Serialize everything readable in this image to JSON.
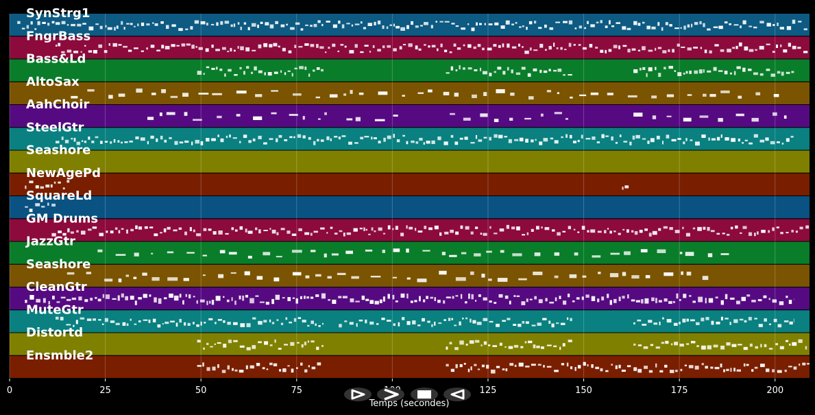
{
  "chart_data": {
    "type": "piano-roll",
    "xlabel": "Temps (secondes)",
    "xlim": [
      0,
      209
    ],
    "xticks": [
      0,
      25,
      50,
      75,
      100,
      125,
      150,
      175,
      200
    ],
    "grid": true,
    "tracks": [
      {
        "name": "SynStrg1",
        "color": "#0d5a82",
        "segments": [
          [
            2,
            209
          ]
        ]
      },
      {
        "name": "FngrBass",
        "color": "#8c0a3c",
        "segments": [
          [
            12,
            209
          ]
        ]
      },
      {
        "name": "Bass&Ld",
        "color": "#0a7d2a",
        "segments": [
          [
            49,
            82
          ],
          [
            114,
            147
          ],
          [
            163,
            205
          ]
        ]
      },
      {
        "name": "AltoSax",
        "color": "#7a5400",
        "segments": [
          [
            16,
            201
          ]
        ]
      },
      {
        "name": "AahChoir",
        "color": "#560a82",
        "segments": [
          [
            36,
            84
          ],
          [
            88,
            102
          ],
          [
            115,
            146
          ],
          [
            163,
            205
          ]
        ]
      },
      {
        "name": "SteelGtr",
        "color": "#0a8080",
        "segments": [
          [
            12,
            205
          ]
        ]
      },
      {
        "name": "Seashore",
        "color": "#808000",
        "segments": []
      },
      {
        "name": "NewAgePd",
        "color": "#7a1e00",
        "segments": [
          [
            4,
            16
          ],
          [
            160,
            162
          ]
        ]
      },
      {
        "name": "SquareLd",
        "color": "#0a5282",
        "segments": [
          [
            4,
            12
          ]
        ]
      },
      {
        "name": "GM Drums",
        "color": "#8c0a3c",
        "segments": [
          [
            11,
            209
          ]
        ]
      },
      {
        "name": "JazzGtr",
        "color": "#0a7d2a",
        "segments": [
          [
            23,
            188
          ]
        ]
      },
      {
        "name": "Seashore",
        "color": "#7a5400",
        "segments": [
          [
            15,
            183
          ]
        ]
      },
      {
        "name": "CleanGtr",
        "color": "#560a82",
        "segments": [
          [
            4,
            205
          ]
        ]
      },
      {
        "name": "MuteGtr",
        "color": "#0a8080",
        "segments": [
          [
            12,
            82
          ],
          [
            86,
            147
          ],
          [
            163,
            205
          ]
        ]
      },
      {
        "name": "Distortd",
        "color": "#808000",
        "segments": [
          [
            49,
            82
          ],
          [
            114,
            147
          ],
          [
            163,
            209
          ]
        ]
      },
      {
        "name": "Ensmble2",
        "color": "#7a1e00",
        "segments": [
          [
            49,
            82
          ],
          [
            114,
            209
          ]
        ]
      }
    ]
  },
  "controls": {
    "play": "play-icon",
    "forward": "fast-forward-icon",
    "stop": "stop-icon",
    "rewind": "rewind-icon"
  }
}
